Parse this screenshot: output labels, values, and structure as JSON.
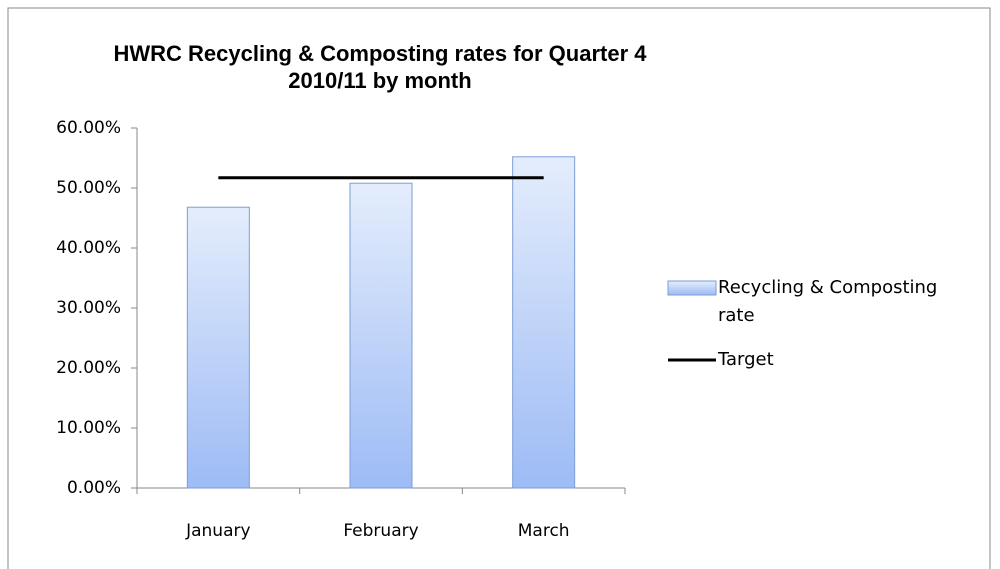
{
  "chart_data": {
    "type": "bar",
    "title": "HWRC Recycling & Composting rates for Quarter 4\n2010/11 by month",
    "categories": [
      "January",
      "February",
      "March"
    ],
    "series": [
      {
        "name": "Recycling & Composting rate",
        "type": "bar",
        "color": "#9dbbf5",
        "values": [
          46.8,
          50.8,
          55.2
        ]
      },
      {
        "name": "Target",
        "type": "line",
        "color": "#000000",
        "values": [
          51.7,
          51.7,
          51.7
        ]
      }
    ],
    "ylim": [
      0,
      60
    ],
    "yticks": [
      {
        "value": 0,
        "label": "0.00%"
      },
      {
        "value": 10,
        "label": "10.00%"
      },
      {
        "value": 20,
        "label": "20.00%"
      },
      {
        "value": 30,
        "label": "30.00%"
      },
      {
        "value": 40,
        "label": "40.00%"
      },
      {
        "value": 50,
        "label": "50.00%"
      },
      {
        "value": 60,
        "label": "60.00%"
      }
    ],
    "legend": "right"
  }
}
